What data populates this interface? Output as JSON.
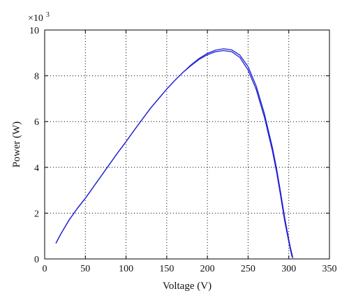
{
  "chart_data": {
    "type": "line",
    "title": "",
    "xlabel": "Voltage (V)",
    "ylabel": "Power (W)",
    "xlim": [
      0,
      350
    ],
    "ylim": [
      0,
      10
    ],
    "x_ticks": [
      "0",
      "50",
      "100",
      "150",
      "200",
      "250",
      "300",
      "350"
    ],
    "y_ticks": [
      "0",
      "2",
      "4",
      "6",
      "8",
      "10"
    ],
    "y_multiplier_base": "×10",
    "y_multiplier_exp": "3",
    "grid": true,
    "line_color": "#1f1fd6",
    "series": [
      {
        "x": [
          14,
          20,
          30,
          40,
          50,
          60,
          70,
          80,
          90,
          100,
          110,
          120,
          130,
          140,
          150,
          160,
          170,
          180,
          190,
          200,
          210,
          220,
          230,
          240,
          250,
          260,
          270,
          280,
          285,
          290,
          295,
          300,
          302,
          303,
          304
        ],
        "y": [
          0.7,
          1.1,
          1.7,
          2.2,
          2.65,
          3.15,
          3.65,
          4.15,
          4.65,
          5.12,
          5.62,
          6.1,
          6.58,
          7.0,
          7.42,
          7.8,
          8.15,
          8.45,
          8.72,
          8.92,
          9.05,
          9.1,
          9.05,
          8.8,
          8.25,
          7.4,
          6.2,
          4.7,
          3.8,
          2.75,
          1.65,
          0.75,
          0.4,
          0.25,
          0.1
        ]
      },
      {
        "x": [
          14,
          20,
          30,
          40,
          50,
          60,
          70,
          80,
          90,
          100,
          110,
          120,
          130,
          140,
          150,
          160,
          170,
          180,
          190,
          200,
          210,
          220,
          230,
          240,
          250,
          260,
          270,
          280,
          285,
          290,
          295,
          300,
          302,
          304,
          305
        ],
        "y": [
          0.7,
          1.1,
          1.7,
          2.2,
          2.65,
          3.15,
          3.65,
          4.15,
          4.65,
          5.12,
          5.62,
          6.1,
          6.58,
          7.0,
          7.42,
          7.8,
          8.15,
          8.48,
          8.76,
          8.98,
          9.12,
          9.18,
          9.13,
          8.9,
          8.4,
          7.55,
          6.35,
          4.85,
          3.95,
          2.9,
          1.8,
          0.85,
          0.5,
          0.2,
          0.05
        ]
      }
    ]
  }
}
